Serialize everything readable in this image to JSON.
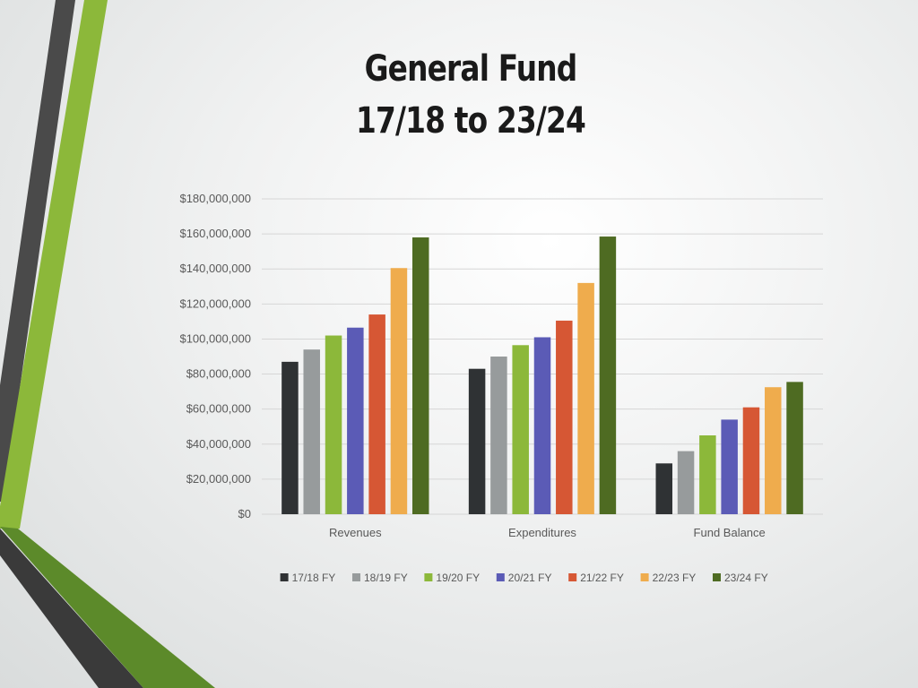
{
  "title_line1": "General Fund",
  "title_line2": "17/18 to 23/24",
  "chart_data": {
    "type": "bar",
    "categories": [
      "Revenues",
      "Expenditures",
      "Fund Balance"
    ],
    "series": [
      {
        "name": "17/18 FY",
        "color": "#2f3234",
        "values": [
          87000000,
          83000000,
          29000000
        ]
      },
      {
        "name": "18/19 FY",
        "color": "#979b9c",
        "values": [
          94000000,
          90000000,
          36000000
        ]
      },
      {
        "name": "19/20 FY",
        "color": "#8cb83a",
        "values": [
          102000000,
          96500000,
          45000000
        ]
      },
      {
        "name": "20/21 FY",
        "color": "#5b5bb6",
        "values": [
          106500000,
          101000000,
          54000000
        ]
      },
      {
        "name": "21/22 FY",
        "color": "#d65734",
        "values": [
          114000000,
          110500000,
          61000000
        ]
      },
      {
        "name": "22/23 FY",
        "color": "#efac4d",
        "values": [
          140500000,
          132000000,
          72500000
        ]
      },
      {
        "name": "23/24 FY",
        "color": "#4e6b22",
        "values": [
          158000000,
          158500000,
          75500000
        ]
      }
    ],
    "ylim": [
      0,
      180000000
    ],
    "yticks": [
      "$0",
      "$20,000,000",
      "$40,000,000",
      "$60,000,000",
      "$80,000,000",
      "$100,000,000",
      "$120,000,000",
      "$140,000,000",
      "$160,000,000",
      "$180,000,000"
    ],
    "grid": true,
    "legend": "bottom"
  }
}
